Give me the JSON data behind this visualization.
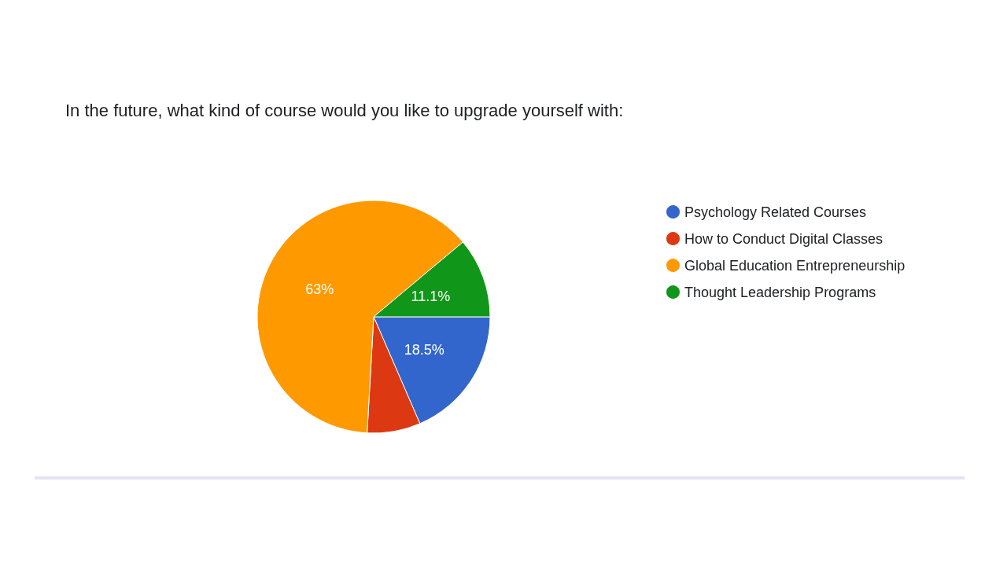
{
  "chart_data": {
    "type": "pie",
    "title": "In the future, what kind of course would you like to upgrade yourself with:",
    "categories": [
      "Psychology Related Courses",
      "How to Conduct Digital Classes",
      "Global Education Entrepreneurship",
      "Thought Leadership Programs"
    ],
    "values": [
      18.5,
      7.4,
      63,
      11.1
    ],
    "colors": [
      "#3366cc",
      "#dc3912",
      "#ff9900",
      "#109618"
    ],
    "value_labels": [
      "18.5%",
      null,
      "63%",
      "11.1%"
    ],
    "legend": "right"
  }
}
